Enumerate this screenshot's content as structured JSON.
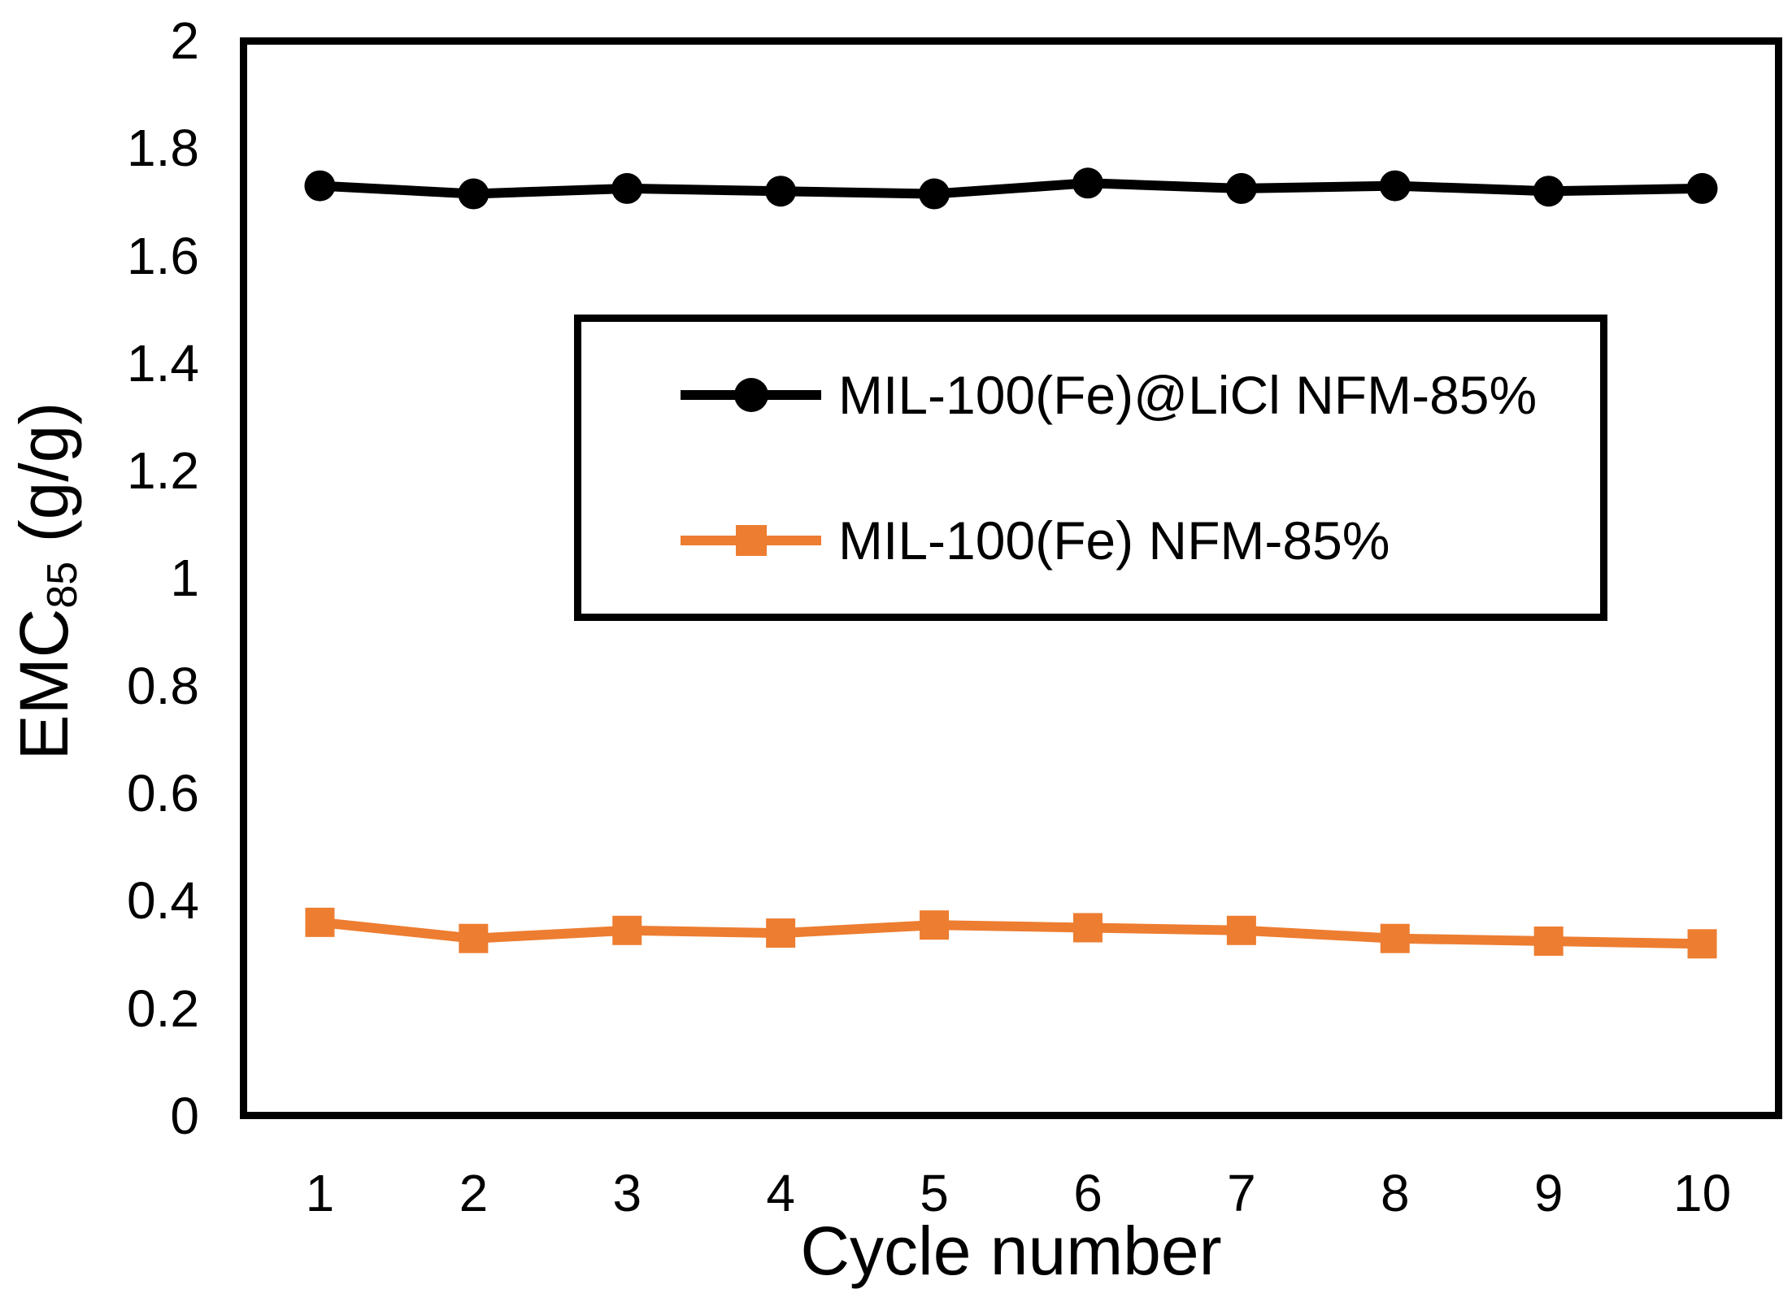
{
  "chart_data": {
    "type": "line",
    "title": "",
    "xlabel": "Cycle number",
    "ylabel_base": "EMC",
    "ylabel_sub": "85",
    "ylabel_unit": " (g/g)",
    "categories": [
      1,
      2,
      3,
      4,
      5,
      6,
      7,
      8,
      9,
      10
    ],
    "x_tick_labels": [
      "1",
      "2",
      "3",
      "4",
      "5",
      "6",
      "7",
      "8",
      "9",
      "10"
    ],
    "y_tick_labels": [
      "2",
      "1.8",
      "1.6",
      "1.4",
      "1.2",
      "1",
      "0.8",
      "0.6",
      "0.4",
      "0.2",
      "0"
    ],
    "ylim": [
      0,
      2
    ],
    "y_tick_step": 0.2,
    "grid": false,
    "legend_position": "inside-center-box",
    "series": [
      {
        "name": "MIL-100(Fe)@LiCl NFM-85%",
        "color": "#000000",
        "marker": "circle",
        "values": [
          1.73,
          1.715,
          1.725,
          1.72,
          1.715,
          1.735,
          1.725,
          1.73,
          1.72,
          1.725
        ]
      },
      {
        "name": "MIL-100(Fe) NFM-85%",
        "color": "#ED7D31",
        "marker": "square",
        "values": [
          0.36,
          0.33,
          0.345,
          0.34,
          0.355,
          0.35,
          0.345,
          0.33,
          0.325,
          0.32
        ]
      }
    ]
  }
}
